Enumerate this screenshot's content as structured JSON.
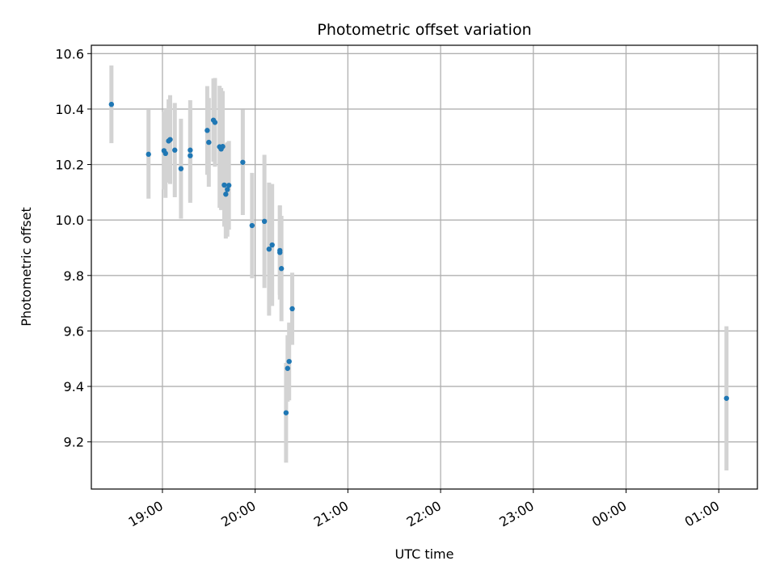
{
  "chart_data": {
    "type": "scatter",
    "title": "Photometric offset variation",
    "xlabel": "UTC time",
    "ylabel": "Photometric offset",
    "x_axis_type": "time",
    "x_tick_labels": [
      "19:00",
      "20:00",
      "21:00",
      "22:00",
      "23:00",
      "00:00",
      "01:00"
    ],
    "y_tick_labels": [
      "9.2",
      "9.4",
      "9.6",
      "9.8",
      "10.0",
      "10.2",
      "10.4",
      "10.6"
    ],
    "xlim": [
      "18:14",
      "25:25"
    ],
    "ylim": [
      9.03,
      10.63
    ],
    "grid": true,
    "marker_color": "#1f77b4",
    "errorbar_color": "#d3d3d3",
    "series": [
      {
        "points": [
          {
            "x": "18:27",
            "y": 10.417,
            "err": 0.14
          },
          {
            "x": "18:51",
            "y": 10.237,
            "err": 0.16
          },
          {
            "x": "19:01",
            "y": 10.25,
            "err": 0.14
          },
          {
            "x": "19:02",
            "y": 10.24,
            "err": 0.16
          },
          {
            "x": "19:04",
            "y": 10.285,
            "err": 0.15
          },
          {
            "x": "19:05",
            "y": 10.29,
            "err": 0.16
          },
          {
            "x": "19:08",
            "y": 10.252,
            "err": 0.17
          },
          {
            "x": "19:12",
            "y": 10.185,
            "err": 0.18
          },
          {
            "x": "19:18",
            "y": 10.252,
            "err": 0.18
          },
          {
            "x": "19:18",
            "y": 10.232,
            "err": 0.17
          },
          {
            "x": "19:29",
            "y": 10.323,
            "err": 0.16
          },
          {
            "x": "19:30",
            "y": 10.28,
            "err": 0.16
          },
          {
            "x": "19:33",
            "y": 10.36,
            "err": 0.15
          },
          {
            "x": "19:34",
            "y": 10.352,
            "err": 0.16
          },
          {
            "x": "19:37",
            "y": 10.264,
            "err": 0.22
          },
          {
            "x": "19:38",
            "y": 10.256,
            "err": 0.22
          },
          {
            "x": "19:39",
            "y": 10.265,
            "err": 0.2
          },
          {
            "x": "19:40",
            "y": 10.126,
            "err": 0.15
          },
          {
            "x": "19:41",
            "y": 10.093,
            "err": 0.16
          },
          {
            "x": "19:42",
            "y": 10.11,
            "err": 0.17
          },
          {
            "x": "19:43",
            "y": 10.125,
            "err": 0.16
          },
          {
            "x": "19:52",
            "y": 10.208,
            "err": 0.19
          },
          {
            "x": "19:58",
            "y": 9.98,
            "err": 0.19
          },
          {
            "x": "20:06",
            "y": 9.995,
            "err": 0.24
          },
          {
            "x": "20:09",
            "y": 9.895,
            "err": 0.24
          },
          {
            "x": "20:11",
            "y": 9.91,
            "err": 0.22
          },
          {
            "x": "20:16",
            "y": 9.883,
            "err": 0.17
          },
          {
            "x": "20:16",
            "y": 9.89,
            "err": 0.16
          },
          {
            "x": "20:17",
            "y": 9.825,
            "err": 0.19
          },
          {
            "x": "20:20",
            "y": 9.305,
            "err": 0.18
          },
          {
            "x": "20:21",
            "y": 9.465,
            "err": 0.12
          },
          {
            "x": "20:22",
            "y": 9.49,
            "err": 0.14
          },
          {
            "x": "20:24",
            "y": 9.68,
            "err": 0.13
          },
          {
            "x": "25:05",
            "y": 9.357,
            "err": 0.26
          }
        ]
      }
    ]
  }
}
